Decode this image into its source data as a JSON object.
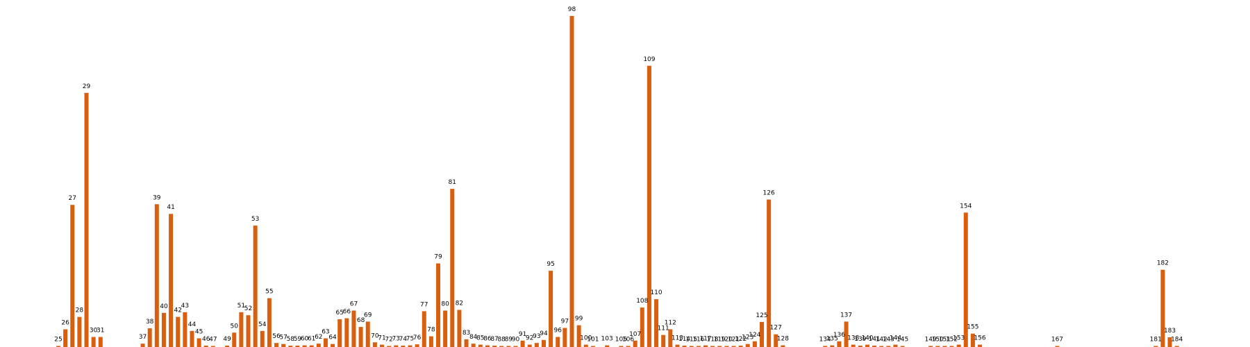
{
  "chart_data": {
    "type": "bar",
    "title": "",
    "xlabel": "",
    "ylabel": "",
    "color": "#d95f0e",
    "grid": false,
    "axes_visible": false,
    "bars": [
      {
        "label": "25",
        "x": 25,
        "value": 0.2
      },
      {
        "label": "26",
        "x": 26,
        "value": 5.3
      },
      {
        "label": "27",
        "x": 27,
        "value": 42.5
      },
      {
        "label": "28",
        "x": 28,
        "value": 9.0
      },
      {
        "label": "29",
        "x": 29,
        "value": 76.0
      },
      {
        "label": "30",
        "x": 30,
        "value": 3.0
      },
      {
        "label": "31",
        "x": 31,
        "value": 3.0
      },
      {
        "label": "37",
        "x": 37,
        "value": 1.0
      },
      {
        "label": "38",
        "x": 38,
        "value": 5.6
      },
      {
        "label": "39",
        "x": 39,
        "value": 42.7
      },
      {
        "label": "40",
        "x": 40,
        "value": 10.2
      },
      {
        "label": "41",
        "x": 41,
        "value": 39.8
      },
      {
        "label": "42",
        "x": 42,
        "value": 9.0
      },
      {
        "label": "43",
        "x": 43,
        "value": 10.4
      },
      {
        "label": "44",
        "x": 44,
        "value": 4.8
      },
      {
        "label": "45",
        "x": 45,
        "value": 2.6
      },
      {
        "label": "46",
        "x": 46,
        "value": 0.4
      },
      {
        "label": "47",
        "x": 47,
        "value": 0.2
      },
      {
        "label": "49",
        "x": 49,
        "value": 0.4
      },
      {
        "label": "50",
        "x": 50,
        "value": 4.3
      },
      {
        "label": "51",
        "x": 51,
        "value": 10.4
      },
      {
        "label": "52",
        "x": 52,
        "value": 9.5
      },
      {
        "label": "53",
        "x": 53,
        "value": 36.3
      },
      {
        "label": "54",
        "x": 54,
        "value": 4.8
      },
      {
        "label": "55",
        "x": 55,
        "value": 14.6
      },
      {
        "label": "56",
        "x": 56,
        "value": 1.2
      },
      {
        "label": "57",
        "x": 57,
        "value": 0.9
      },
      {
        "label": "58",
        "x": 58,
        "value": 0.4
      },
      {
        "label": "59",
        "x": 59,
        "value": 0.4
      },
      {
        "label": "60",
        "x": 60,
        "value": 0.5
      },
      {
        "label": "61",
        "x": 61,
        "value": 0.5
      },
      {
        "label": "62",
        "x": 62,
        "value": 1.0
      },
      {
        "label": "63",
        "x": 63,
        "value": 2.6
      },
      {
        "label": "64",
        "x": 64,
        "value": 0.9
      },
      {
        "label": "65",
        "x": 65,
        "value": 8.3
      },
      {
        "label": "66",
        "x": 66,
        "value": 8.6
      },
      {
        "label": "67",
        "x": 67,
        "value": 10.9
      },
      {
        "label": "68",
        "x": 68,
        "value": 6.0
      },
      {
        "label": "69",
        "x": 69,
        "value": 7.6
      },
      {
        "label": "70",
        "x": 70,
        "value": 1.4
      },
      {
        "label": "71",
        "x": 71,
        "value": 0.7
      },
      {
        "label": "72",
        "x": 72,
        "value": 0.1
      },
      {
        "label": "73",
        "x": 73,
        "value": 0.5
      },
      {
        "label": "74",
        "x": 74,
        "value": 0.4
      },
      {
        "label": "75",
        "x": 75,
        "value": 0.5
      },
      {
        "label": "76",
        "x": 76,
        "value": 0.8
      },
      {
        "label": "77",
        "x": 77,
        "value": 10.7
      },
      {
        "label": "78",
        "x": 78,
        "value": 3.2
      },
      {
        "label": "79",
        "x": 79,
        "value": 25.0
      },
      {
        "label": "80",
        "x": 80,
        "value": 10.9
      },
      {
        "label": "81",
        "x": 81,
        "value": 47.3
      },
      {
        "label": "82",
        "x": 82,
        "value": 11.1
      },
      {
        "label": "83",
        "x": 83,
        "value": 2.3
      },
      {
        "label": "84",
        "x": 84,
        "value": 1.0
      },
      {
        "label": "85",
        "x": 85,
        "value": 0.7
      },
      {
        "label": "86",
        "x": 86,
        "value": 0.5
      },
      {
        "label": "87",
        "x": 87,
        "value": 0.4
      },
      {
        "label": "88",
        "x": 88,
        "value": 0.2
      },
      {
        "label": "89",
        "x": 89,
        "value": 0.2
      },
      {
        "label": "90",
        "x": 90,
        "value": 0.2
      },
      {
        "label": "91",
        "x": 91,
        "value": 1.9
      },
      {
        "label": "92",
        "x": 92,
        "value": 0.7
      },
      {
        "label": "93",
        "x": 93,
        "value": 1.2
      },
      {
        "label": "94",
        "x": 94,
        "value": 2.1
      },
      {
        "label": "95",
        "x": 95,
        "value": 22.8
      },
      {
        "label": "96",
        "x": 96,
        "value": 3.0
      },
      {
        "label": "97",
        "x": 97,
        "value": 5.7
      },
      {
        "label": "98",
        "x": 98,
        "value": 99.0
      },
      {
        "label": "99",
        "x": 99,
        "value": 6.5
      },
      {
        "label": "100",
        "x": 100,
        "value": 0.7
      },
      {
        "label": "101",
        "x": 101,
        "value": 0.1
      },
      {
        "label": "103",
        "x": 103,
        "value": 0.5
      },
      {
        "label": "105",
        "x": 105,
        "value": 0.3
      },
      {
        "label": "106",
        "x": 106,
        "value": 0.3
      },
      {
        "label": "107",
        "x": 107,
        "value": 1.9
      },
      {
        "label": "108",
        "x": 108,
        "value": 11.8
      },
      {
        "label": "109",
        "x": 109,
        "value": 84.1
      },
      {
        "label": "110",
        "x": 110,
        "value": 14.3
      },
      {
        "label": "111",
        "x": 111,
        "value": 3.6
      },
      {
        "label": "112",
        "x": 112,
        "value": 5.3
      },
      {
        "label": "113",
        "x": 113,
        "value": 0.7
      },
      {
        "label": "114",
        "x": 114,
        "value": 0.4
      },
      {
        "label": "115",
        "x": 115,
        "value": 0.2
      },
      {
        "label": "116",
        "x": 116,
        "value": 0.2
      },
      {
        "label": "117",
        "x": 117,
        "value": 0.5
      },
      {
        "label": "118",
        "x": 118,
        "value": 0.2
      },
      {
        "label": "119",
        "x": 119,
        "value": 0.2
      },
      {
        "label": "120",
        "x": 120,
        "value": 0.1
      },
      {
        "label": "121",
        "x": 121,
        "value": 0.2
      },
      {
        "label": "122",
        "x": 122,
        "value": 0.4
      },
      {
        "label": "123",
        "x": 123,
        "value": 0.9
      },
      {
        "label": "124",
        "x": 124,
        "value": 1.7
      },
      {
        "label": "125",
        "x": 125,
        "value": 7.5
      },
      {
        "label": "126",
        "x": 126,
        "value": 44.1
      },
      {
        "label": "127",
        "x": 127,
        "value": 3.8
      },
      {
        "label": "128",
        "x": 128,
        "value": 0.5
      },
      {
        "label": "134",
        "x": 134,
        "value": 0.2
      },
      {
        "label": "135",
        "x": 135,
        "value": 0.5
      },
      {
        "label": "136",
        "x": 136,
        "value": 1.7
      },
      {
        "label": "137",
        "x": 137,
        "value": 7.6
      },
      {
        "label": "138",
        "x": 138,
        "value": 0.7
      },
      {
        "label": "139",
        "x": 139,
        "value": 0.4
      },
      {
        "label": "140",
        "x": 140,
        "value": 0.7
      },
      {
        "label": "141",
        "x": 141,
        "value": 0.4
      },
      {
        "label": "142",
        "x": 142,
        "value": 0.2
      },
      {
        "label": "143",
        "x": 143,
        "value": 0.2
      },
      {
        "label": "144",
        "x": 144,
        "value": 0.7
      },
      {
        "label": "145",
        "x": 145,
        "value": 0.1
      },
      {
        "label": "149",
        "x": 149,
        "value": 0.2
      },
      {
        "label": "150",
        "x": 150,
        "value": 0.1
      },
      {
        "label": "151",
        "x": 151,
        "value": 0.1
      },
      {
        "label": "152",
        "x": 152,
        "value": 0.1
      },
      {
        "label": "153",
        "x": 153,
        "value": 0.7
      },
      {
        "label": "154",
        "x": 154,
        "value": 40.2
      },
      {
        "label": "155",
        "x": 155,
        "value": 4.0
      },
      {
        "label": "156",
        "x": 156,
        "value": 0.7
      },
      {
        "label": "167",
        "x": 167,
        "value": 0.1
      },
      {
        "label": "181",
        "x": 181,
        "value": 0.2
      },
      {
        "label": "182",
        "x": 182,
        "value": 23.1
      },
      {
        "label": "183",
        "x": 183,
        "value": 2.9
      },
      {
        "label": "184",
        "x": 184,
        "value": 0.1
      }
    ]
  }
}
